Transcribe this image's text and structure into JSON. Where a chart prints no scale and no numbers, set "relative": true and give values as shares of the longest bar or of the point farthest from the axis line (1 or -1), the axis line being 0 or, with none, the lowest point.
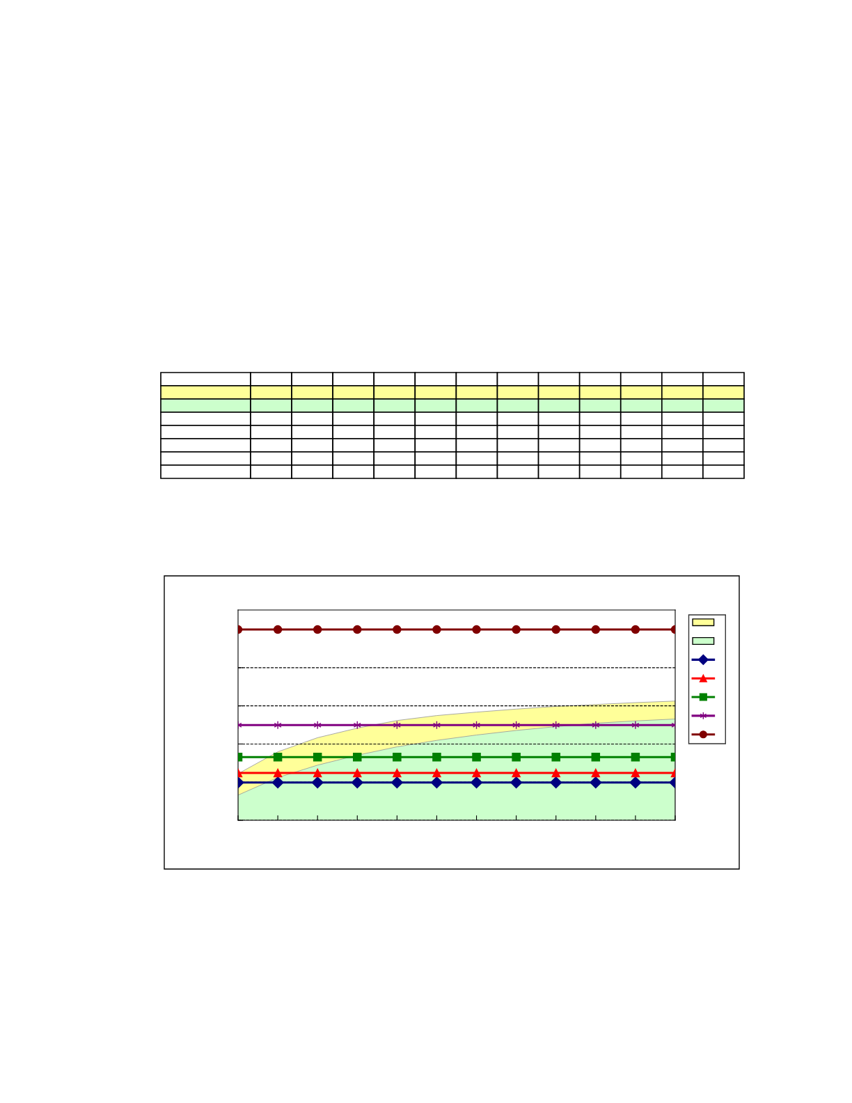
{
  "chart_data": {
    "type": "line",
    "relative": true,
    "grid": "y",
    "line_style": "solid",
    "categories": [
      null,
      null,
      null,
      null,
      null,
      null,
      null,
      null,
      null,
      null,
      null,
      null
    ],
    "series": [
      {
        "type": "area",
        "color": "#ffff99",
        "values": [
          0.244,
          0.359,
          0.433,
          0.483,
          0.523,
          0.549,
          0.567,
          0.583,
          0.597,
          0.607,
          0.617,
          0.625
        ]
      },
      {
        "type": "area",
        "color": "#ccffcc",
        "values": [
          0.132,
          0.224,
          0.289,
          0.341,
          0.385,
          0.419,
          0.447,
          0.471,
          0.491,
          0.509,
          0.521,
          0.531
        ]
      },
      {
        "color": "#000080",
        "marker": "diamond",
        "values": [
          0.198,
          0.198,
          0.198,
          0.198,
          0.198,
          0.198,
          0.198,
          0.198,
          0.198,
          0.198,
          0.198,
          0.198
        ]
      },
      {
        "color": "#ff0000",
        "marker": "triangle",
        "values": [
          0.248,
          0.248,
          0.248,
          0.248,
          0.248,
          0.248,
          0.248,
          0.248,
          0.248,
          0.248,
          0.248,
          0.248
        ]
      },
      {
        "color": "#008000",
        "marker": "square",
        "values": [
          0.331,
          0.331,
          0.331,
          0.331,
          0.331,
          0.331,
          0.331,
          0.331,
          0.331,
          0.331,
          0.331,
          0.331
        ]
      },
      {
        "color": "#800080",
        "marker": "cross",
        "values": [
          0.499,
          0.499,
          0.499,
          0.499,
          0.499,
          0.499,
          0.499,
          0.499,
          0.499,
          0.499,
          0.499,
          0.499
        ]
      },
      {
        "color": "#800000",
        "marker": "circle",
        "values": [
          1,
          1,
          1,
          1,
          1,
          1,
          1,
          1,
          1,
          1,
          1,
          1
        ]
      }
    ]
  }
}
